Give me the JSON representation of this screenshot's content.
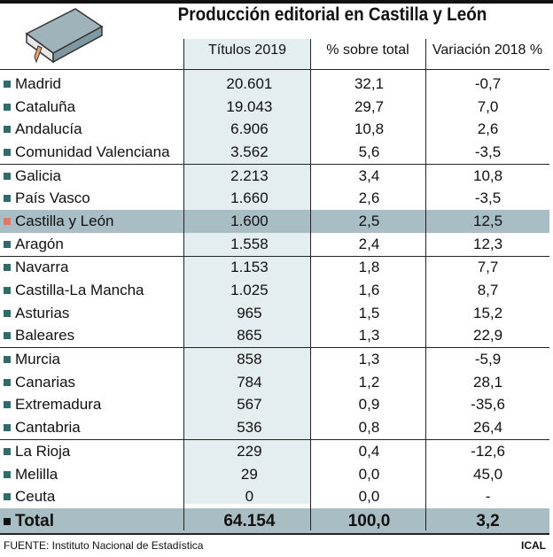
{
  "title": "Producción editorial en Castilla y León",
  "headers": [
    "Títulos 2019",
    "% sobre total",
    "Variación 2018 %"
  ],
  "colors": {
    "bullet": "#2f6b6b",
    "highlight_bullet": "#e07a5f",
    "highlight_row": "#a9bdc5",
    "column_bg": "#e4edf0"
  },
  "rows": [
    [
      "Madrid",
      "20.601",
      "32,1",
      "-0,7"
    ],
    [
      "Cataluña",
      "19.043",
      "29,7",
      "7,0"
    ],
    [
      "Andalucía",
      "6.906",
      "10,8",
      "2,6"
    ],
    [
      "Comunidad Valenciana",
      "3.562",
      "5,6",
      "-3,5"
    ],
    [
      "Galicia",
      "2.213",
      "3,4",
      "10,8"
    ],
    [
      "País Vasco",
      "1.660",
      "2,6",
      "-3,5"
    ],
    [
      "Castilla y León",
      "1.600",
      "2,5",
      "12,5"
    ],
    [
      "Aragón",
      "1.558",
      "2,4",
      "12,3"
    ],
    [
      "Navarra",
      "1.153",
      "1,8",
      "7,7"
    ],
    [
      "Castilla-La Mancha",
      "1.025",
      "1,6",
      "8,7"
    ],
    [
      "Asturias",
      "965",
      "1,5",
      "15,2"
    ],
    [
      "Baleares",
      "865",
      "1,3",
      "22,9"
    ],
    [
      "Murcia",
      "858",
      "1,3",
      "-5,9"
    ],
    [
      "Canarias",
      "784",
      "1,2",
      "28,1"
    ],
    [
      "Extremadura",
      "567",
      "0,9",
      "-35,6"
    ],
    [
      "Cantabria",
      "536",
      "0,8",
      "26,4"
    ],
    [
      "La Rioja",
      "229",
      "0,4",
      "-12,6"
    ],
    [
      "Melilla",
      "29",
      "0,0",
      "45,0"
    ],
    [
      "Ceuta",
      "0",
      "0,0",
      "-"
    ]
  ],
  "total": [
    "Total",
    "64.154",
    "100,0",
    "3,2"
  ],
  "footer": {
    "source": "FUENTE: Instituto Nacional de Estadística",
    "credit": "ICAL"
  }
}
